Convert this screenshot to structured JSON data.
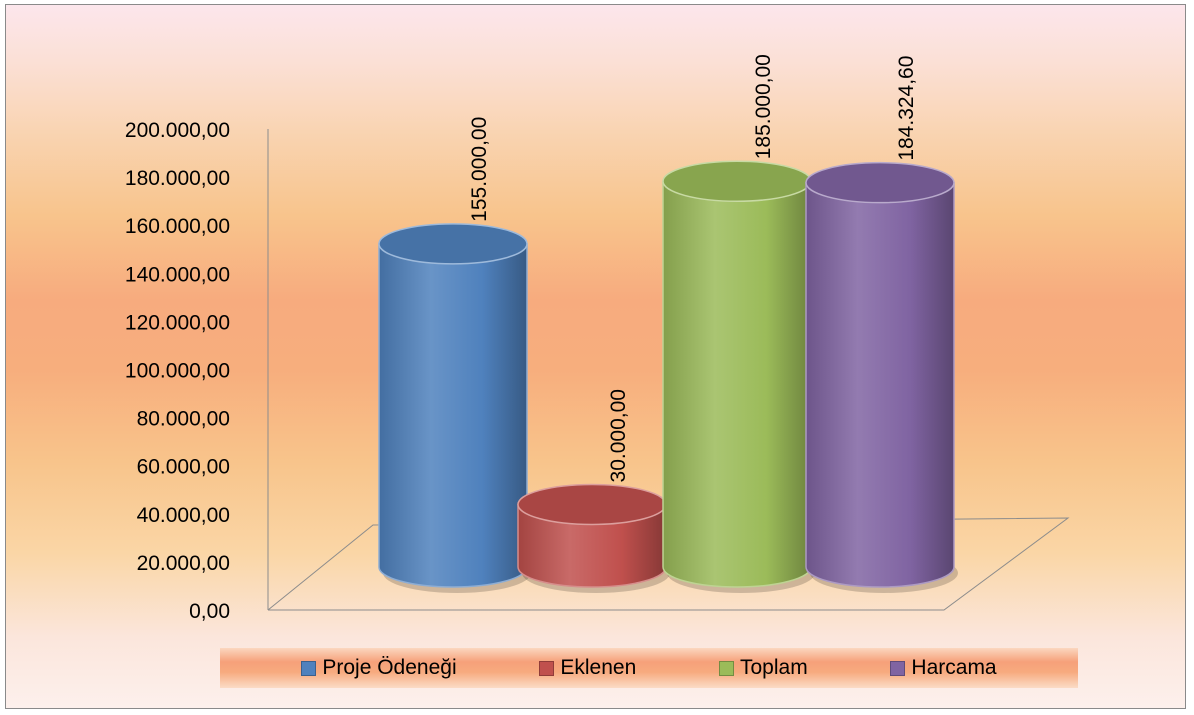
{
  "chart_data": {
    "type": "bar",
    "categories": [
      "Proje Ödeneği",
      "Eklenen",
      "Toplam",
      "Harcama"
    ],
    "values": [
      155000,
      30000,
      185000,
      184324.6
    ],
    "data_labels": [
      "155.000,00",
      "30.000,00",
      "185.000,00",
      "184.324,60"
    ],
    "ylim": [
      0,
      200000
    ],
    "y_ticks": [
      "0,00",
      "20.000,00",
      "40.000,00",
      "60.000,00",
      "80.000,00",
      "100.000,00",
      "120.000,00",
      "140.000,00",
      "160.000,00",
      "180.000,00",
      "200.000,00"
    ],
    "legend": {
      "position": "bottom",
      "entries": [
        {
          "label": "Proje Ödeneği",
          "color": "#4f81bd"
        },
        {
          "label": "Eklenen",
          "color": "#c0504d"
        },
        {
          "label": "Toplam",
          "color": "#9bbb59"
        },
        {
          "label": "Harcama",
          "color": "#8064a2"
        }
      ]
    },
    "colors": [
      "#4f81bd",
      "#c0504d",
      "#9bbb59",
      "#8064a2"
    ],
    "style": "3d-cylinder"
  }
}
